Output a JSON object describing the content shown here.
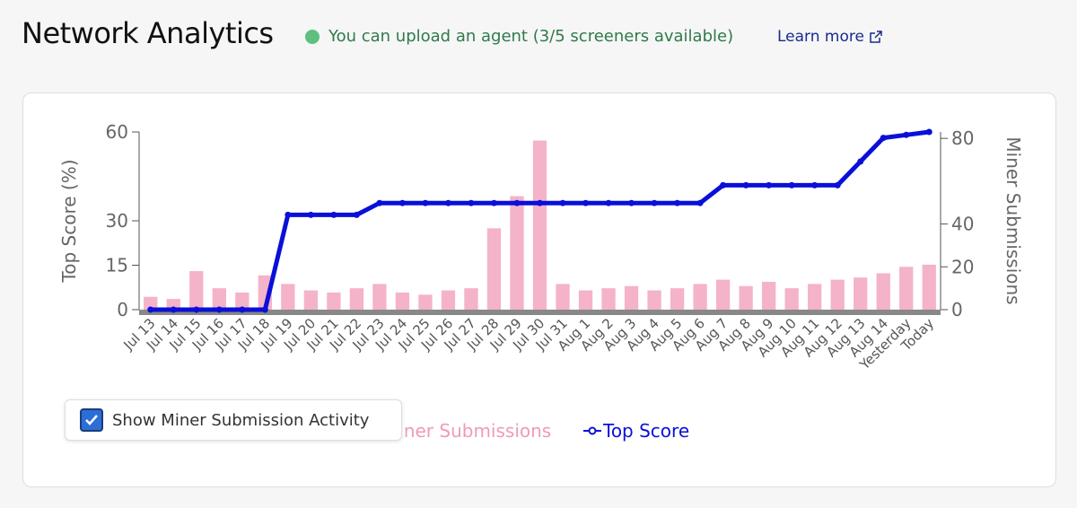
{
  "header": {
    "title": "Network Analytics",
    "status": "You can upload an agent (3/5 screeners available)",
    "link": "Learn more"
  },
  "checkbox": {
    "label": "Show Miner Submission Activity",
    "checked": true
  },
  "chart_data": {
    "type": "bar",
    "ylabel": "Top Score (%)",
    "y2label": "Miner Submissions",
    "categories": [
      "Jul 13",
      "Jul 14",
      "Jul 15",
      "Jul 16",
      "Jul 17",
      "Jul 18",
      "Jul 19",
      "Jul 20",
      "Jul 21",
      "Jul 22",
      "Jul 23",
      "Jul 24",
      "Jul 25",
      "Jul 26",
      "Jul 27",
      "Jul 28",
      "Jul 29",
      "Jul 30",
      "Jul 31",
      "Aug 1",
      "Aug 2",
      "Aug 3",
      "Aug 4",
      "Aug 5",
      "Aug 6",
      "Aug 7",
      "Aug 8",
      "Aug 9",
      "Aug 10",
      "Aug 11",
      "Aug 12",
      "Aug 13",
      "Aug 14",
      "Yesterday",
      "Today"
    ],
    "ylim": [
      0,
      60
    ],
    "yticks": [
      0,
      15,
      30,
      60
    ],
    "y2lim": [
      0,
      83
    ],
    "y2ticks": [
      0,
      20,
      40,
      80
    ],
    "series": [
      {
        "name": "Miner Submissions",
        "type": "bar",
        "axis": "y2",
        "color": "#f4b3c8",
        "values": [
          6,
          5,
          18,
          10,
          8,
          16,
          12,
          9,
          8,
          10,
          12,
          8,
          7,
          9,
          10,
          38,
          53,
          79,
          12,
          9,
          10,
          11,
          9,
          10,
          12,
          14,
          11,
          13,
          10,
          12,
          14,
          15,
          17,
          20,
          21
        ]
      },
      {
        "name": "Top Score",
        "type": "line",
        "axis": "y",
        "color": "#0a10d8",
        "values": [
          0,
          0,
          0,
          0,
          0,
          0,
          32,
          32,
          32,
          32,
          36,
          36,
          36,
          36,
          36,
          36,
          36,
          36,
          36,
          36,
          36,
          36,
          36,
          36,
          36,
          42,
          42,
          42,
          42,
          42,
          42,
          50,
          58,
          59,
          60
        ]
      }
    ]
  }
}
